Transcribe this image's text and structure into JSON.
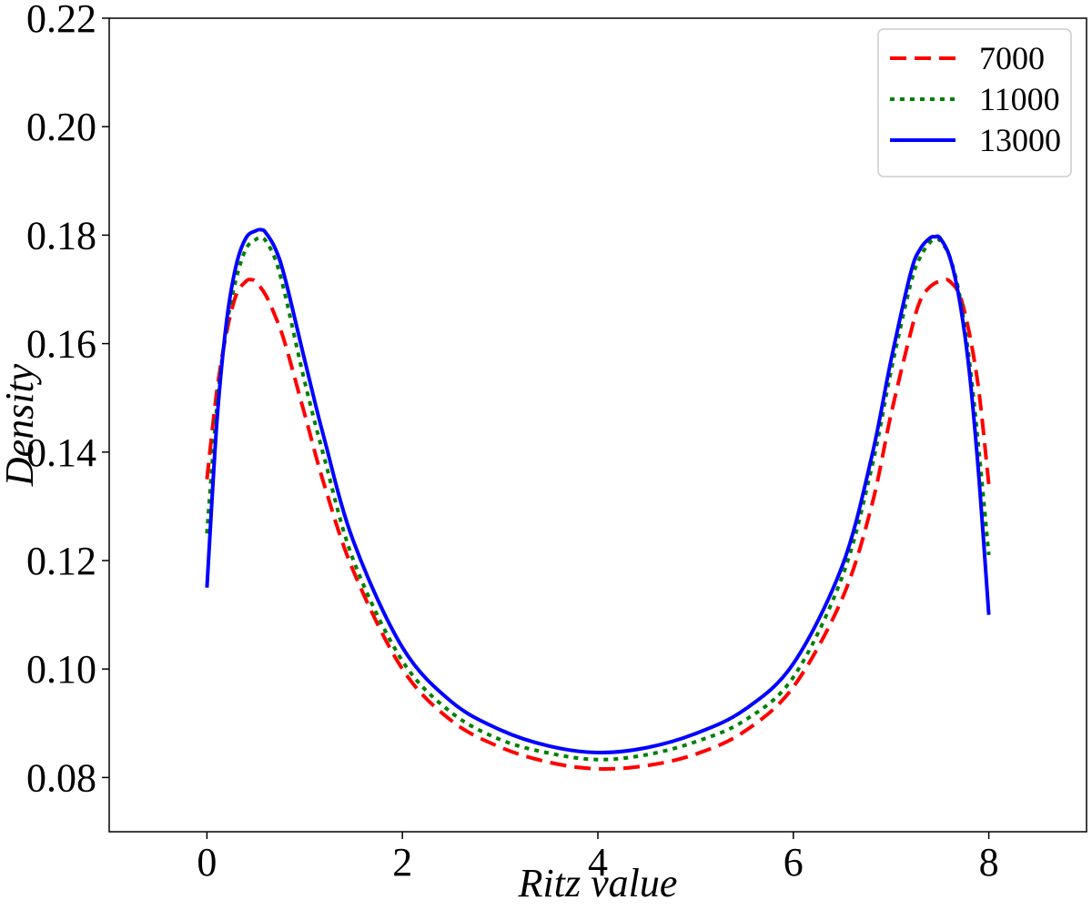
{
  "chart_data": {
    "type": "line",
    "title": "",
    "xlabel": "Ritz value",
    "ylabel": "Density",
    "xlim": [
      -1,
      9
    ],
    "ylim": [
      0.07,
      0.22
    ],
    "xticks": [
      0,
      2,
      4,
      6,
      8
    ],
    "xtick_labels": [
      "0",
      "2",
      "4",
      "6",
      "8"
    ],
    "yticks": [
      0.08,
      0.1,
      0.12,
      0.14,
      0.16,
      0.18,
      0.2,
      0.22
    ],
    "ytick_labels": [
      "0.08",
      "0.10",
      "0.12",
      "0.14",
      "0.16",
      "0.18",
      "0.20",
      "0.22"
    ],
    "grid": false,
    "legend_position": "top-right",
    "series": [
      {
        "name": "7000",
        "color": "#ff0000",
        "linestyle": "dashed",
        "x": [
          0,
          0.1,
          0.2,
          0.3,
          0.4,
          0.45,
          0.5,
          0.6,
          0.7,
          0.8,
          1.0,
          1.2,
          1.5,
          2.0,
          2.5,
          3.0,
          3.5,
          4.0,
          4.5,
          5.0,
          5.5,
          6.0,
          6.5,
          6.8,
          7.0,
          7.2,
          7.3,
          7.4,
          7.5,
          7.55,
          7.6,
          7.7,
          7.8,
          7.9,
          8.0
        ],
        "y": [
          0.135,
          0.151,
          0.162,
          0.169,
          0.1715,
          0.1718,
          0.1714,
          0.169,
          0.165,
          0.16,
          0.147,
          0.134,
          0.118,
          0.1,
          0.0905,
          0.0856,
          0.0828,
          0.0816,
          0.0822,
          0.0843,
          0.0885,
          0.0967,
          0.113,
          0.13,
          0.147,
          0.162,
          0.168,
          0.1705,
          0.1716,
          0.1718,
          0.1715,
          0.169,
          0.162,
          0.151,
          0.134
        ]
      },
      {
        "name": "11000",
        "color": "#008000",
        "linestyle": "dotted",
        "x": [
          0,
          0.1,
          0.2,
          0.3,
          0.4,
          0.5,
          0.55,
          0.6,
          0.7,
          0.8,
          1.0,
          1.2,
          1.5,
          2.0,
          2.5,
          3.0,
          3.5,
          4.0,
          4.5,
          5.0,
          5.5,
          6.0,
          6.5,
          6.8,
          7.0,
          7.2,
          7.3,
          7.4,
          7.45,
          7.5,
          7.6,
          7.7,
          7.8,
          7.9,
          8.0
        ],
        "y": [
          0.125,
          0.148,
          0.163,
          0.172,
          0.1775,
          0.1792,
          0.1795,
          0.179,
          0.1755,
          0.169,
          0.153,
          0.139,
          0.12,
          0.1015,
          0.092,
          0.087,
          0.0845,
          0.0833,
          0.0842,
          0.0866,
          0.0905,
          0.0985,
          0.117,
          0.137,
          0.155,
          0.171,
          0.176,
          0.1787,
          0.1792,
          0.179,
          0.176,
          0.169,
          0.157,
          0.14,
          0.121
        ]
      },
      {
        "name": "13000",
        "color": "#0000ff",
        "linestyle": "solid",
        "x": [
          0,
          0.1,
          0.2,
          0.3,
          0.4,
          0.5,
          0.55,
          0.6,
          0.7,
          0.8,
          1.0,
          1.2,
          1.5,
          2.0,
          2.5,
          3.0,
          3.5,
          4.0,
          4.5,
          5.0,
          5.5,
          6.0,
          6.5,
          6.8,
          7.0,
          7.2,
          7.3,
          7.4,
          7.45,
          7.5,
          7.6,
          7.7,
          7.8,
          7.9,
          8.0
        ],
        "y": [
          0.115,
          0.145,
          0.164,
          0.1745,
          0.1795,
          0.1808,
          0.181,
          0.1805,
          0.1775,
          0.172,
          0.157,
          0.1425,
          0.1235,
          0.104,
          0.094,
          0.0888,
          0.0858,
          0.0846,
          0.0855,
          0.0881,
          0.0925,
          0.101,
          0.119,
          0.139,
          0.157,
          0.173,
          0.1775,
          0.1795,
          0.1797,
          0.1795,
          0.176,
          0.168,
          0.155,
          0.135,
          0.11
        ]
      }
    ]
  }
}
